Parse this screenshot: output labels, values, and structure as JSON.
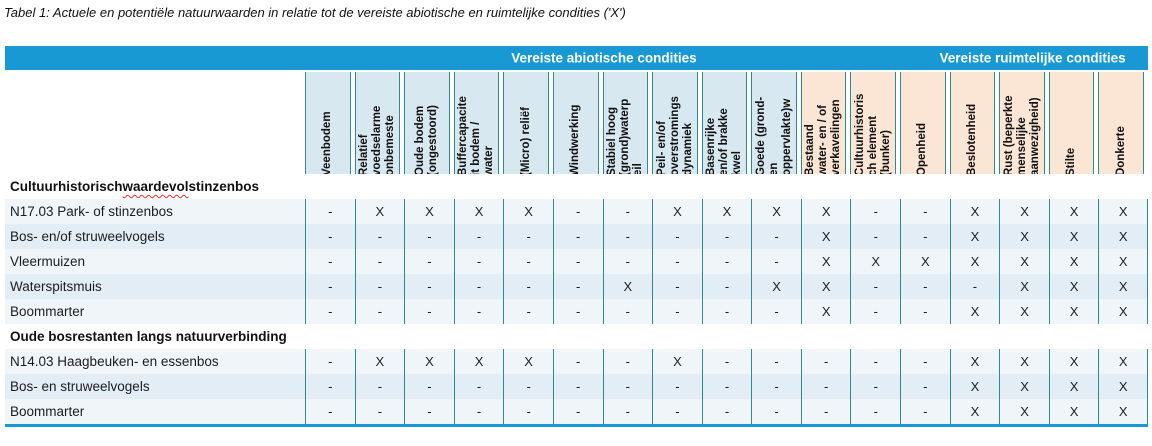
{
  "title": "Tabel 1: Actuele en potentiële natuurwaarden in relatie tot de vereiste abiotische en ruimtelijke condities ('X')",
  "header": {
    "abiotic_label": "Vereiste abiotische condities",
    "spatial_label": "Vereiste ruimtelijke condities"
  },
  "colors": {
    "accent_blue": "#1899d4",
    "abiotic_header_bg": "#d8e8f0",
    "spatial_header_bg": "#fbe5d4",
    "separator_teal": "#2e8b87",
    "row_stripe_light": "#f0f5fa",
    "row_stripe_dark": "#e2edf6",
    "spellcheck_wavy": "#e03030"
  },
  "columns": [
    {
      "label": "Veenbodem",
      "group": "abiotic"
    },
    {
      "label": "Relatief\nvoedselarme\nonbemeste",
      "group": "abiotic"
    },
    {
      "label": "Oude bodem\n(ongestoord)",
      "group": "abiotic"
    },
    {
      "label": "Buffercapacite\nit bodem /\nwater",
      "group": "abiotic"
    },
    {
      "label": "(Micro) reliëf",
      "group": "abiotic"
    },
    {
      "label": "Windwerking",
      "group": "abiotic"
    },
    {
      "label": "Stabiel hoog\n(grond)waterp\neil",
      "group": "abiotic"
    },
    {
      "label": "Peil- en/of\noverstromings\ndynamiek",
      "group": "abiotic"
    },
    {
      "label": "Basenrijke\nen/of brakke\nkwel",
      "group": "abiotic"
    },
    {
      "label": "Goede (grond-\nen\noppervlakte)w",
      "group": "abiotic"
    },
    {
      "label": "Bestaand\nwater- en / of\nverkavelingen",
      "group": "spatial"
    },
    {
      "label": "Cultuurhistoris\nch element\n(bunker)",
      "group": "spatial"
    },
    {
      "label": "Openheid",
      "group": "spatial"
    },
    {
      "label": "Beslotenheid",
      "group": "spatial"
    },
    {
      "label": "Rust (beperkte\nmenselijke\naanwezigheid)",
      "group": "spatial"
    },
    {
      "label": "Stilte",
      "group": "spatial"
    },
    {
      "label": "Donkerte",
      "group": "spatial"
    }
  ],
  "groups": [
    {
      "title_before": "Cultuurhistorisch ",
      "title_wavy": "waardevol",
      "title_after": " stinzenbos",
      "rows": [
        {
          "label": "N17.03 Park- of stinzenbos",
          "values": [
            "-",
            "X",
            "X",
            "X",
            "X",
            "-",
            "-",
            "X",
            "X",
            "X",
            "X",
            "-",
            "-",
            "X",
            "X",
            "X",
            "X"
          ]
        },
        {
          "label": "Bos- en/of struweelvogels",
          "values": [
            "-",
            "-",
            "-",
            "-",
            "-",
            "-",
            "-",
            "-",
            "-",
            "-",
            "X",
            "-",
            "-",
            "X",
            "X",
            "X",
            "X"
          ]
        },
        {
          "label": "Vleermuizen",
          "values": [
            "-",
            "-",
            "-",
            "-",
            "-",
            "-",
            "-",
            "-",
            "-",
            "-",
            "X",
            "X",
            "X",
            "X",
            "X",
            "X",
            "X"
          ]
        },
        {
          "label": "Waterspitsmuis",
          "values": [
            "-",
            "-",
            "-",
            "-",
            "-",
            "-",
            "X",
            "-",
            "-",
            "X",
            "X",
            "-",
            "-",
            "-",
            "X",
            "X",
            "X"
          ]
        },
        {
          "label": "Boommarter",
          "values": [
            "-",
            "-",
            "-",
            "-",
            "-",
            "-",
            "-",
            "-",
            "-",
            "-",
            "X",
            "-",
            "-",
            "X",
            "X",
            "X",
            "X"
          ]
        }
      ]
    },
    {
      "title_before": "Oude bosrestanten langs natuurverbinding",
      "title_wavy": "",
      "title_after": "",
      "rows": [
        {
          "label": "N14.03 Haagbeuken- en essenbos",
          "values": [
            "-",
            "X",
            "X",
            "X",
            "X",
            "-",
            "-",
            "X",
            "-",
            "-",
            "-",
            "-",
            "-",
            "X",
            "X",
            "X",
            "X"
          ]
        },
        {
          "label": "Bos- en struweelvogels",
          "values": [
            "-",
            "-",
            "-",
            "-",
            "-",
            "-",
            "-",
            "-",
            "-",
            "-",
            "-",
            "-",
            "-",
            "X",
            "X",
            "X",
            "X"
          ]
        },
        {
          "label": "Boommarter",
          "values": [
            "-",
            "-",
            "-",
            "-",
            "-",
            "-",
            "-",
            "-",
            "-",
            "-",
            "-",
            "-",
            "-",
            "X",
            "X",
            "X",
            "X"
          ]
        }
      ]
    }
  ]
}
